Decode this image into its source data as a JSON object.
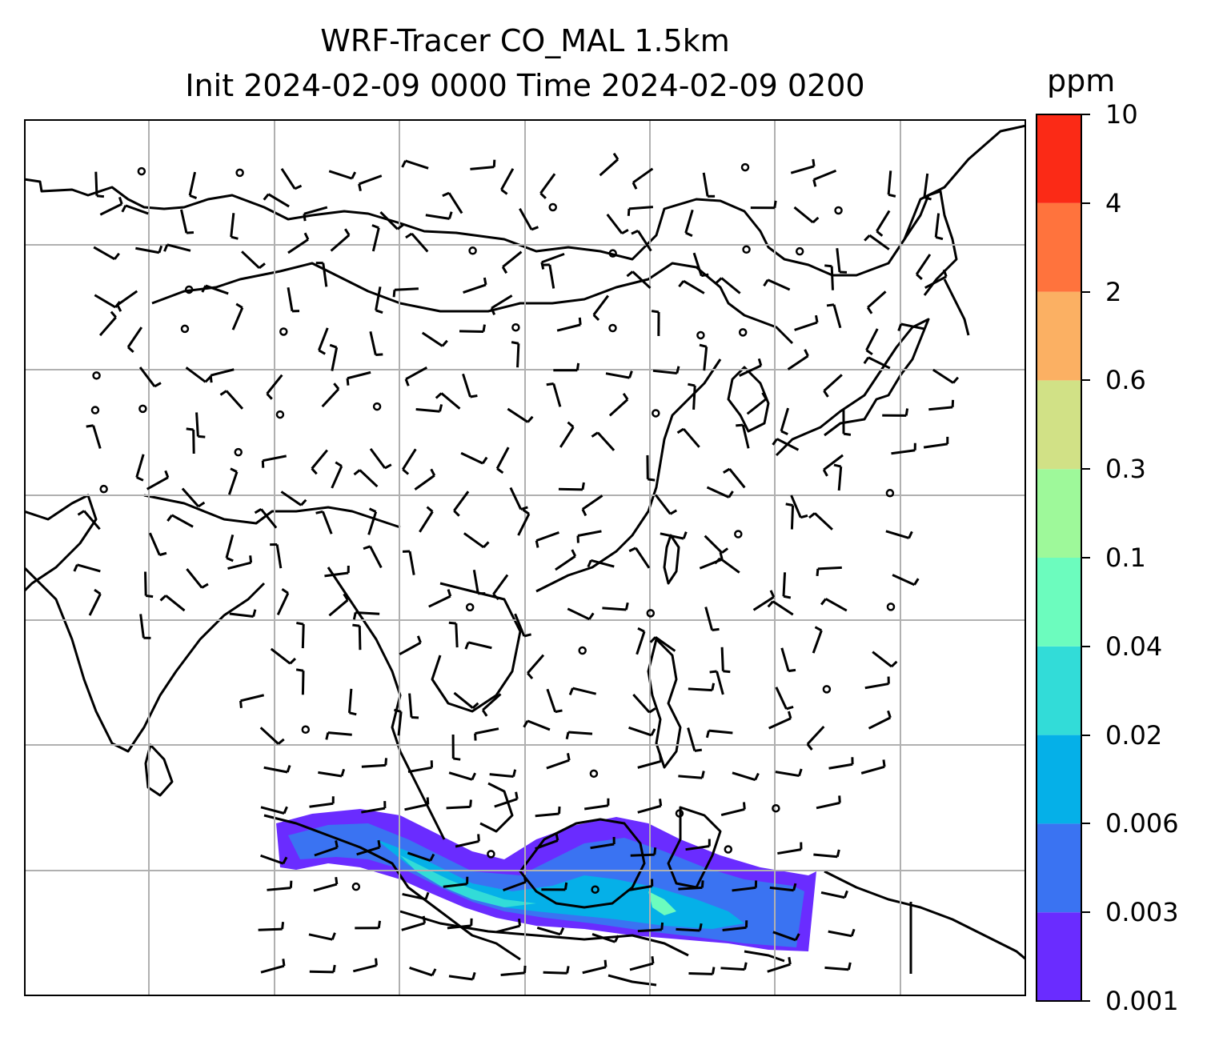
{
  "title": {
    "line1": "WRF-Tracer CO_MAL 1.5km",
    "line2": "Init 2024-02-09 0000 Time 2024-02-09 0200"
  },
  "colorbar": {
    "unit": "ppm",
    "levels": [
      "0.001",
      "0.003",
      "0.006",
      "0.02",
      "0.04",
      "0.1",
      "0.3",
      "0.6",
      "2",
      "4",
      "10"
    ],
    "colors": [
      "#6a2cff",
      "#3a73f2",
      "#05b0e8",
      "#32dcd8",
      "#6cfcbe",
      "#9ef99a",
      "#d1e186",
      "#fbb063",
      "#ff733d",
      "#fb2a16"
    ]
  },
  "map": {
    "gridlines": true,
    "land_outline_color": "#000000",
    "grid_color": "#b0b0b0"
  }
}
